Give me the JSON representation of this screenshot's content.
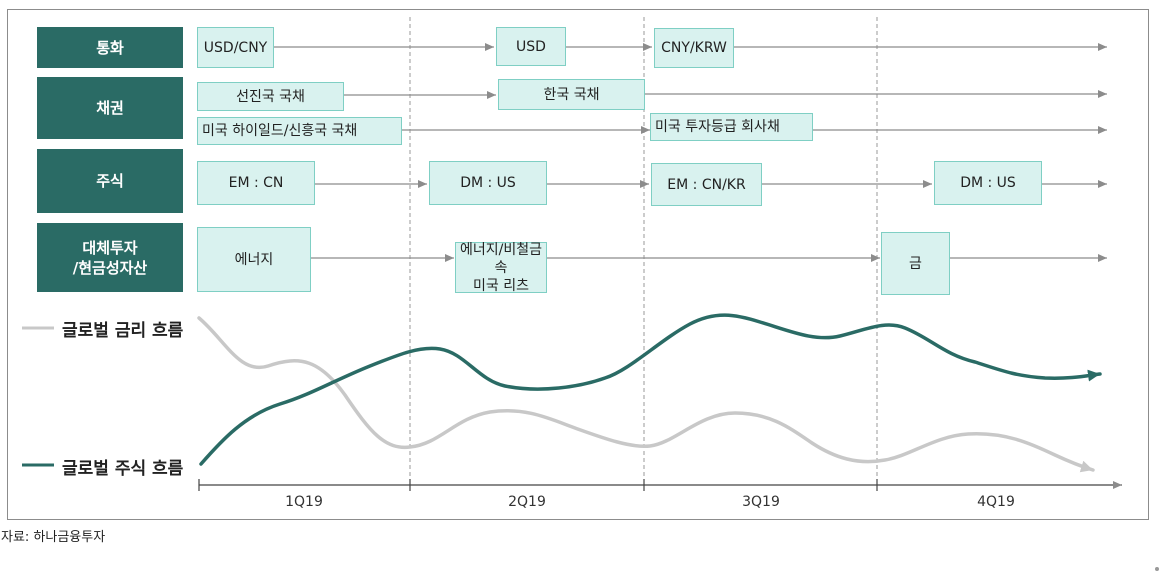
{
  "categories": {
    "currency": "통화",
    "bond": "채권",
    "equity": "주식",
    "alternative": "대체투자\n/현금성자산"
  },
  "currency": {
    "usd_cny": "USD/CNY",
    "usd": "USD",
    "cny_krw": "CNY/KRW"
  },
  "bond": {
    "dm_govt": "선진국 국채",
    "kr_govt": "한국 국채",
    "us_hy_em": "미국 하이일드/신흥국 국채",
    "us_ig": "미국 투자등급 회사채"
  },
  "equity": {
    "em_cn": "EM : CN",
    "dm_us_1": "DM : US",
    "em_cn_kr": "EM : CN/KR",
    "dm_us_2": "DM : US"
  },
  "alternative": {
    "energy": "에너지",
    "energy_metal": "에너지/비철금속\n미국 리츠",
    "gold": "금"
  },
  "legend": {
    "rates": "글로벌 금리 흐름",
    "equity": "글로벌 주식 흐름"
  },
  "quarters": [
    "1Q19",
    "2Q19",
    "3Q19",
    "4Q19"
  ],
  "colors": {
    "category_bg": "#2a6b65",
    "box_bg": "#d9f2ef",
    "box_border": "#7fcfc4",
    "rates_line": "#c8c8c8",
    "equity_line": "#2a6b65"
  },
  "source": "자료: 하나금융투자"
}
